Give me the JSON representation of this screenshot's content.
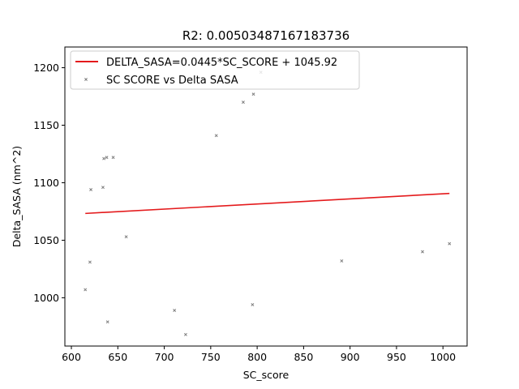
{
  "chart_data": {
    "type": "scatter",
    "title": "R2: 0.00503487167183736",
    "xlabel": "SC_score",
    "ylabel": "Delta_SASA (nm^2)",
    "xlim": [
      593,
      1026
    ],
    "ylim": [
      958,
      1218
    ],
    "xticks": [
      600,
      650,
      700,
      750,
      800,
      850,
      900,
      950,
      1000
    ],
    "yticks": [
      1000,
      1050,
      1100,
      1150,
      1200
    ],
    "grid": false,
    "legend_position": "top-left",
    "series": [
      {
        "name": "DELTA_SASA=0.0445*SC_SCORE + 1045.92",
        "kind": "line",
        "color": "#e41a1c",
        "x": [
          615,
          1007
        ],
        "y": [
          1073.3,
          1090.7
        ]
      },
      {
        "name": "SC SCORE vs Delta SASA",
        "kind": "scatter",
        "color": "#808080",
        "x": [
          615,
          620,
          621,
          634,
          635,
          638,
          639,
          645,
          659,
          711,
          723,
          756,
          785,
          795,
          796,
          804,
          891,
          978,
          1007
        ],
        "y": [
          1007,
          1031,
          1094,
          1096,
          1121,
          1122,
          979,
          1122,
          1053,
          989,
          968,
          1141,
          1170,
          994,
          1177,
          1196,
          1032,
          1040,
          1047
        ]
      }
    ]
  }
}
